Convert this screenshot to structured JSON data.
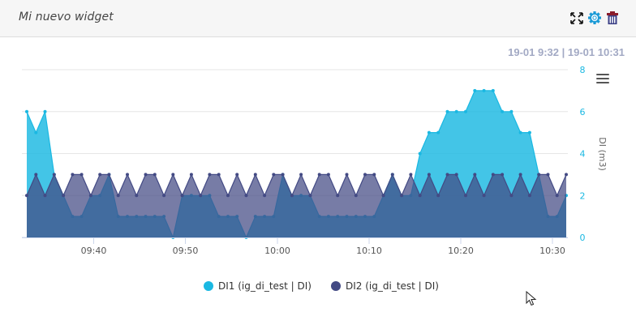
{
  "widget": {
    "title": "Mi nuevo widget",
    "icons": [
      "expand-icon",
      "gear-icon",
      "trash-icon"
    ],
    "date_range": "19-01 9:32 | 19-01 10:31"
  },
  "chart_data": {
    "type": "area",
    "title": "",
    "xlabel": "",
    "ylabel": "DI (m3)",
    "ylabel_position": "right",
    "ylim": [
      0,
      8
    ],
    "yticks": [
      "0",
      "2",
      "4",
      "6",
      "8"
    ],
    "x_start": "09:32",
    "x_end": "10:31",
    "x_interval": "1 min",
    "xticks": [
      "09:40",
      "09:50",
      "10:00",
      "10:10",
      "10:20",
      "10:30"
    ],
    "grid": true,
    "legend_position": "bottom",
    "series": [
      {
        "name": "DI1 (ig_di_test | DI)",
        "color": "#1ab8e2",
        "values": [
          6,
          5,
          6,
          3,
          2,
          1,
          1,
          2,
          2,
          3,
          1,
          1,
          1,
          1,
          1,
          1,
          0,
          2,
          2,
          2,
          2,
          1,
          1,
          1,
          0,
          1,
          1,
          1,
          3,
          2,
          2,
          2,
          1,
          1,
          1,
          1,
          1,
          1,
          1,
          2,
          3,
          2,
          2,
          4,
          5,
          5,
          6,
          6,
          6,
          7,
          7,
          7,
          6,
          6,
          5,
          5,
          3,
          1,
          1,
          2
        ]
      },
      {
        "name": "DI2 (ig_di_test | DI)",
        "color": "#434a84",
        "values": [
          2,
          3,
          2,
          3,
          2,
          3,
          3,
          2,
          3,
          3,
          2,
          3,
          2,
          3,
          3,
          2,
          3,
          2,
          3,
          2,
          3,
          3,
          2,
          3,
          2,
          3,
          2,
          3,
          3,
          2,
          3,
          2,
          3,
          3,
          2,
          3,
          2,
          3,
          3,
          2,
          3,
          2,
          3,
          2,
          3,
          2,
          3,
          3,
          2,
          3,
          2,
          3,
          3,
          2,
          3,
          2,
          3,
          3,
          2,
          3
        ]
      }
    ]
  },
  "legend": {
    "items": [
      {
        "label": "DI1 (ig_di_test | DI)",
        "color": "#1ab8e2"
      },
      {
        "label": "DI2 (ig_di_test | DI)",
        "color": "#434a84"
      }
    ]
  }
}
